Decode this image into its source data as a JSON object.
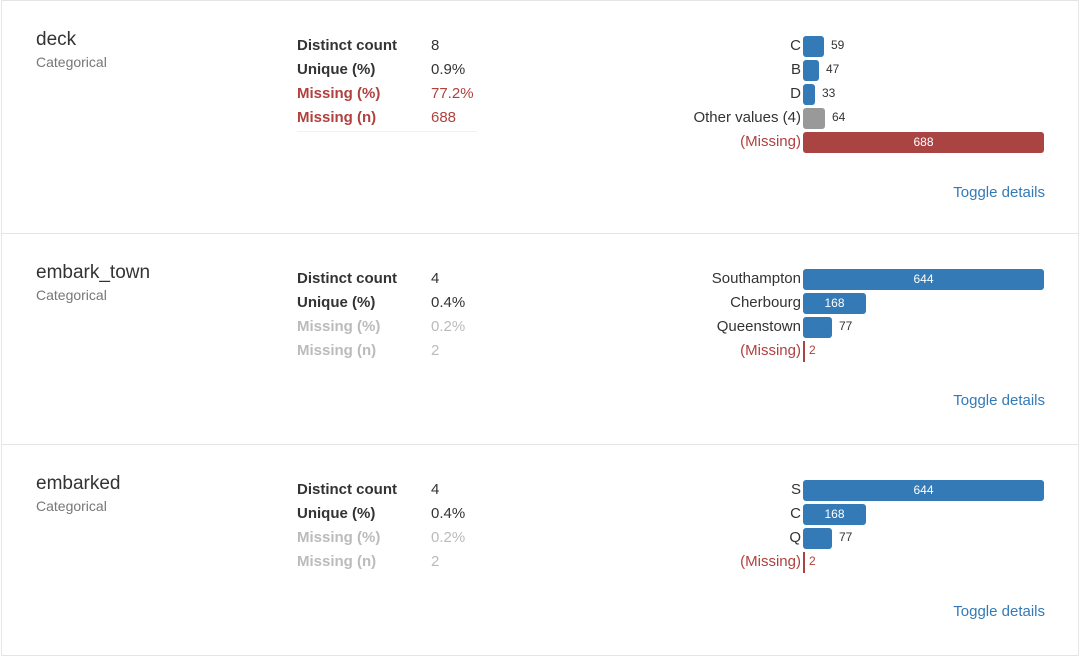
{
  "variables": [
    {
      "name": "deck",
      "type": "Categorical",
      "stats": [
        {
          "label": "Distinct count",
          "value": "8",
          "style": "normal"
        },
        {
          "label": "Unique (%)",
          "value": "0.9%",
          "style": "normal"
        },
        {
          "label": "Missing (%)",
          "value": "77.2%",
          "style": "alert"
        },
        {
          "label": "Missing (n)",
          "value": "688",
          "style": "alert"
        }
      ],
      "frequencies": [
        {
          "label": "C",
          "count": "59",
          "fraction": 0.0858,
          "kind": "normal"
        },
        {
          "label": "B",
          "count": "47",
          "fraction": 0.0683,
          "kind": "normal"
        },
        {
          "label": "D",
          "count": "33",
          "fraction": 0.048,
          "kind": "normal"
        },
        {
          "label": "Other values (4)",
          "count": "64",
          "fraction": 0.093,
          "kind": "other"
        },
        {
          "label": "(Missing)",
          "count": "688",
          "fraction": 1.0,
          "kind": "missing"
        }
      ],
      "toggle_label": "Toggle details"
    },
    {
      "name": "embark_town",
      "type": "Categorical",
      "stats": [
        {
          "label": "Distinct count",
          "value": "4",
          "style": "normal"
        },
        {
          "label": "Unique (%)",
          "value": "0.4%",
          "style": "normal"
        },
        {
          "label": "Missing (%)",
          "value": "0.2%",
          "style": "muted"
        },
        {
          "label": "Missing (n)",
          "value": "2",
          "style": "muted"
        }
      ],
      "frequencies": [
        {
          "label": "Southampton",
          "count": "644",
          "fraction": 1.0,
          "kind": "normal"
        },
        {
          "label": "Cherbourg",
          "count": "168",
          "fraction": 0.2609,
          "kind": "normal"
        },
        {
          "label": "Queenstown",
          "count": "77",
          "fraction": 0.1196,
          "kind": "normal"
        },
        {
          "label": "(Missing)",
          "count": "2",
          "fraction": 0.003,
          "kind": "missing"
        }
      ],
      "toggle_label": "Toggle details"
    },
    {
      "name": "embarked",
      "type": "Categorical",
      "stats": [
        {
          "label": "Distinct count",
          "value": "4",
          "style": "normal"
        },
        {
          "label": "Unique (%)",
          "value": "0.4%",
          "style": "normal"
        },
        {
          "label": "Missing (%)",
          "value": "0.2%",
          "style": "muted"
        },
        {
          "label": "Missing (n)",
          "value": "2",
          "style": "muted"
        }
      ],
      "frequencies": [
        {
          "label": "S",
          "count": "644",
          "fraction": 1.0,
          "kind": "normal"
        },
        {
          "label": "C",
          "count": "168",
          "fraction": 0.2609,
          "kind": "normal"
        },
        {
          "label": "Q",
          "count": "77",
          "fraction": 0.1196,
          "kind": "normal"
        },
        {
          "label": "(Missing)",
          "count": "2",
          "fraction": 0.003,
          "kind": "missing"
        }
      ],
      "toggle_label": "Toggle details"
    }
  ],
  "colors": {
    "bar": "#337ab7",
    "other_bar": "#999999",
    "missing": "#a94442",
    "alert_text": "#b0413e",
    "link": "#337ab7"
  }
}
